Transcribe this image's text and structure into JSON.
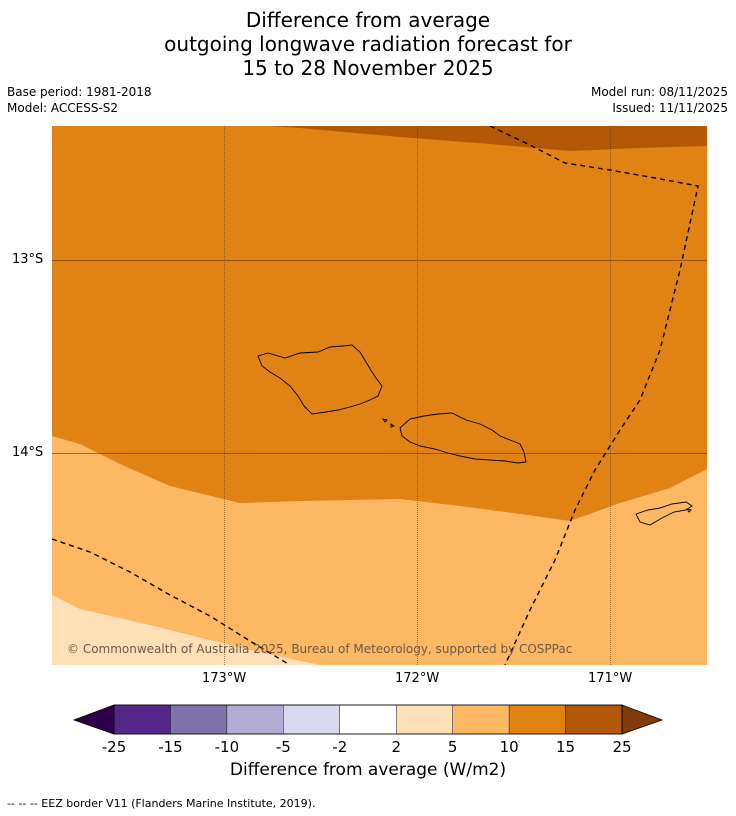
{
  "title": {
    "line1": "Difference from average",
    "line2": "outgoing longwave radiation forecast for",
    "line3": "15 to 28 November 2025"
  },
  "meta": {
    "base_period": "Base period: 1981-2018",
    "model": "Model: ACCESS-S2",
    "model_run": "Model run: 08/11/2025",
    "issued": "Issued: 11/11/2025"
  },
  "map": {
    "lat_labels": [
      "13°S",
      "14°S"
    ],
    "lon_labels": [
      "173°W",
      "172°W",
      "171°W"
    ],
    "copyright": "© Commonwealth of Australia 2025, Bureau of Meteorology, supported by COSPPac",
    "colors": {
      "anom_10_15": "#e08214",
      "anom_15_25": "#b35806",
      "anom_5_10": "#fdb863",
      "anom_2_5": "#fee0b6"
    }
  },
  "colorbar": {
    "ticks": [
      "-25",
      "-15",
      "-10",
      "-5",
      "-2",
      "2",
      "5",
      "10",
      "15",
      "25"
    ],
    "colors": [
      "#2d004b",
      "#542788",
      "#8073ac",
      "#b2abd2",
      "#d8daeb",
      "#ffffff",
      "#fee0b6",
      "#fdb863",
      "#e08214",
      "#b35806",
      "#7f3b08"
    ],
    "title": "Difference from average (W/m2)"
  },
  "footer": "--  --  -- EEZ border V11 (Flanders Marine Institute, 2019)."
}
